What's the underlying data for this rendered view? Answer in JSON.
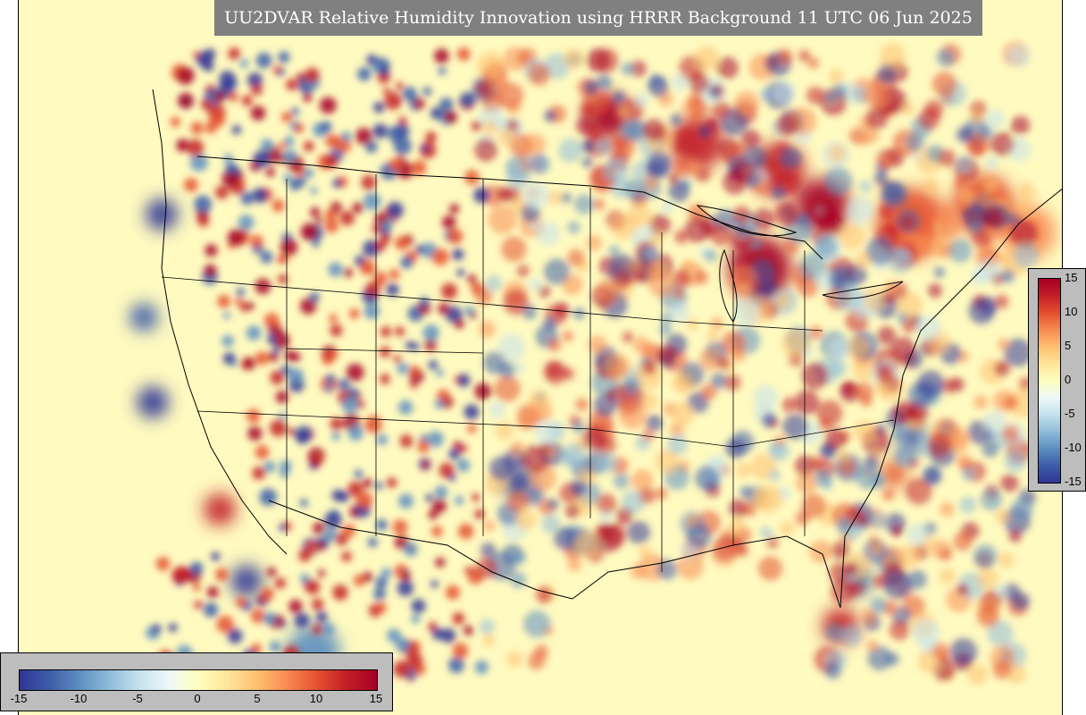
{
  "title": "UU2DVAR Relative Humidity Innovation using HRRR Background 11 UTC 06 Jun 2025",
  "colorbar": {
    "min": -15,
    "max": 15,
    "ticks": [
      "-15",
      "-10",
      "-5",
      "0",
      "5",
      "10",
      "15"
    ],
    "ticks_right": [
      "15",
      "10",
      "5",
      "0",
      "-5",
      "-10",
      "-15"
    ],
    "colors": [
      "#313695",
      "#3d5da8",
      "#5d8ec0",
      "#8fbbd9",
      "#c4e1ee",
      "#eef8f8",
      "#fefebe",
      "#fee59a",
      "#fdbf6f",
      "#f88a52",
      "#e4502f",
      "#c21e27",
      "#a50026"
    ]
  },
  "map": {
    "background_color": "#fffac0",
    "projection": "Lambert conformal (CONUS)"
  }
}
